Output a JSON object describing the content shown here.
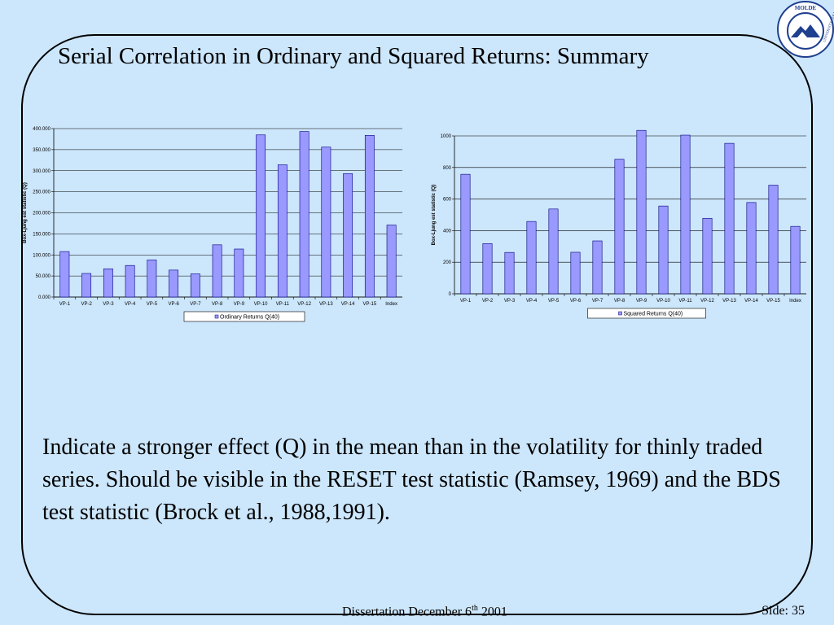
{
  "slide": {
    "title": "Serial Correlation in Ordinary and Squared Returns: Summary",
    "body": "Indicate a stronger effect (Q) in the mean than in the volatility for thinly traded series. Should be visible in the RESET test statistic (Ramsey, 1969) and the BDS test statistic (Brock et al., 1988,1991).",
    "footer_left": "Dissertation December 6",
    "footer_sup": "th",
    "footer_year": " 2001",
    "page": "Side: 35",
    "logo_text_top": "MOLDE",
    "logo_text_side": "UNIVERSITY COLLEGE"
  },
  "colors": {
    "background": "#cce6fb",
    "bar_fill": "#9999ff",
    "bar_stroke": "#000080"
  },
  "chart_data": [
    {
      "type": "bar",
      "categories": [
        "VP-1",
        "VP-2",
        "VP-3",
        "VP-4",
        "VP-5",
        "VP-6",
        "VP-7",
        "VP-8",
        "VP-9",
        "VP-10",
        "VP-11",
        "VP-12",
        "VP-13",
        "VP-14",
        "VP-15",
        "Index"
      ],
      "series": [
        {
          "name": "Ordinary Returns Q(40)",
          "values": [
            108,
            56,
            67,
            75,
            88,
            64,
            55,
            124,
            114,
            385,
            314,
            393,
            356,
            293,
            384,
            171
          ]
        }
      ],
      "ylabel": "Box-Ljung est statistic (Q)",
      "ylim": [
        0,
        400
      ],
      "yticks": [
        "0.000",
        "50.000",
        "100.000",
        "150.000",
        "200.000",
        "250.000",
        "300.000",
        "350.000",
        "400.000"
      ],
      "grid": true,
      "legend": "bottom"
    },
    {
      "type": "bar",
      "categories": [
        "VP-1",
        "VP-2",
        "VP-3",
        "VP-4",
        "VP-5",
        "VP-6",
        "VP-7",
        "VP-8",
        "VP-9",
        "VP-10",
        "VP-11",
        "VP-12",
        "VP-13",
        "VP-14",
        "VP-15",
        "Index"
      ],
      "series": [
        {
          "name": "Squared Returns Q(40)",
          "values": [
            757,
            318,
            262,
            458,
            537,
            263,
            335,
            852,
            1035,
            556,
            1005,
            478,
            953,
            578,
            688,
            427
          ]
        }
      ],
      "ylabel": "Box-Ljung est statistic (Q)",
      "ylim": [
        0,
        1000
      ],
      "yticks": [
        "0",
        "200",
        "400",
        "600",
        "800",
        "1000"
      ],
      "grid": true,
      "legend": "bottom"
    }
  ]
}
